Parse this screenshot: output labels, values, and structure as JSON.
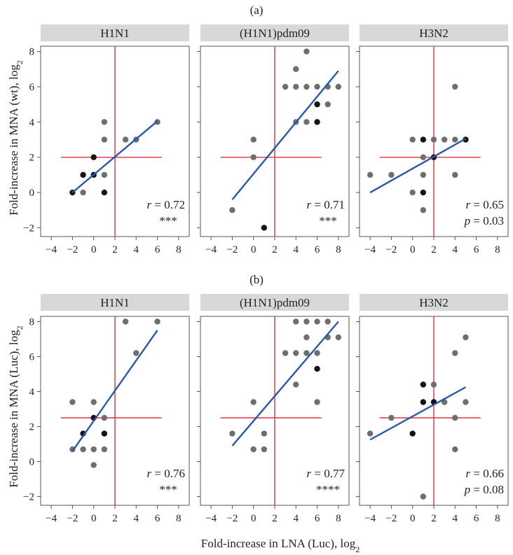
{
  "figure": {
    "panel_a_label": "(a)",
    "panel_b_label": "(b)",
    "ylabel_a": "Fold-increase in MNA (wt), log",
    "ylabel_b": "Fold-increase in MNA (Luc), log",
    "xlabel": "Fold-increase in LNA (Luc), log",
    "log_subscript": "2"
  },
  "chart_data": [
    {
      "type": "scatter",
      "row": "a",
      "title": "H1N1",
      "xlim": [
        -5,
        9
      ],
      "ylim": [
        -2.5,
        8.3
      ],
      "xticks": [
        "−4",
        "−2",
        "0",
        "2",
        "4",
        "6",
        "8"
      ],
      "yticks": [
        "−2",
        "0",
        "2",
        "4",
        "6",
        "8"
      ],
      "ref_x": 2,
      "ref_y": 2,
      "fit_x": [
        -2,
        6
      ],
      "fit_y": [
        0,
        4.05
      ],
      "r_label": "r",
      "r_value": " = 0.72",
      "sig": "***",
      "points": [
        {
          "x": -2,
          "y": 0,
          "dark": true
        },
        {
          "x": -1,
          "y": 1,
          "dark": true
        },
        {
          "x": -1,
          "y": 0,
          "dark": false
        },
        {
          "x": 0,
          "y": 2,
          "dark": true
        },
        {
          "x": 0,
          "y": 1,
          "dark": true
        },
        {
          "x": 1,
          "y": 4,
          "dark": false
        },
        {
          "x": 1,
          "y": 3,
          "dark": false
        },
        {
          "x": 1,
          "y": 1,
          "dark": false
        },
        {
          "x": 1,
          "y": 0,
          "dark": true
        },
        {
          "x": 3,
          "y": 3,
          "dark": false
        },
        {
          "x": 4,
          "y": 3,
          "dark": false
        },
        {
          "x": 6,
          "y": 4,
          "dark": false
        }
      ]
    },
    {
      "type": "scatter",
      "row": "a",
      "title": "(H1N1)pdm09",
      "xlim": [
        -5,
        9
      ],
      "ylim": [
        -2.5,
        8.3
      ],
      "xticks": [
        "−4",
        "−2",
        "0",
        "2",
        "4",
        "6",
        "8"
      ],
      "yticks": [
        "−2",
        "0",
        "2",
        "4",
        "6",
        "8"
      ],
      "ref_x": 2,
      "ref_y": 2,
      "fit_x": [
        -2,
        8
      ],
      "fit_y": [
        -0.4,
        6.9
      ],
      "r_label": "r",
      "r_value": " = 0.71",
      "sig": "***",
      "points": [
        {
          "x": -2,
          "y": -1,
          "dark": false
        },
        {
          "x": 0,
          "y": 3,
          "dark": false
        },
        {
          "x": 0,
          "y": 2,
          "dark": false
        },
        {
          "x": 1,
          "y": -2,
          "dark": true
        },
        {
          "x": 3,
          "y": 6,
          "dark": false
        },
        {
          "x": 4,
          "y": 7,
          "dark": false
        },
        {
          "x": 4,
          "y": 6,
          "dark": false
        },
        {
          "x": 4,
          "y": 4,
          "dark": false
        },
        {
          "x": 5,
          "y": 8,
          "dark": false
        },
        {
          "x": 5,
          "y": 6,
          "dark": false
        },
        {
          "x": 5,
          "y": 4,
          "dark": false
        },
        {
          "x": 6,
          "y": 6,
          "dark": false
        },
        {
          "x": 6,
          "y": 5,
          "dark": true
        },
        {
          "x": 6,
          "y": 4,
          "dark": true
        },
        {
          "x": 7,
          "y": 6,
          "dark": false
        },
        {
          "x": 7,
          "y": 5,
          "dark": false
        },
        {
          "x": 8,
          "y": 6,
          "dark": false
        }
      ]
    },
    {
      "type": "scatter",
      "row": "a",
      "title": "H3N2",
      "xlim": [
        -5,
        9
      ],
      "ylim": [
        -2.5,
        8.3
      ],
      "xticks": [
        "−4",
        "−2",
        "0",
        "2",
        "4",
        "6",
        "8"
      ],
      "yticks": [
        "−2",
        "0",
        "2",
        "4",
        "6",
        "8"
      ],
      "ref_x": 2,
      "ref_y": 2,
      "fit_x": [
        -4,
        5
      ],
      "fit_y": [
        0,
        3.05
      ],
      "r_label": "r",
      "r_value": " = 0.65",
      "p_label": "p",
      "p_value": " = 0.03",
      "points": [
        {
          "x": -4,
          "y": 1,
          "dark": false
        },
        {
          "x": -2,
          "y": 1,
          "dark": false
        },
        {
          "x": 0,
          "y": 3,
          "dark": false
        },
        {
          "x": 0,
          "y": 0,
          "dark": false
        },
        {
          "x": 1,
          "y": 3,
          "dark": true
        },
        {
          "x": 1,
          "y": 2,
          "dark": false
        },
        {
          "x": 1,
          "y": 1,
          "dark": false
        },
        {
          "x": 1,
          "y": 0,
          "dark": true
        },
        {
          "x": 1,
          "y": -1,
          "dark": false
        },
        {
          "x": 2,
          "y": 3,
          "dark": false
        },
        {
          "x": 2,
          "y": 2,
          "dark": true
        },
        {
          "x": 3,
          "y": 3,
          "dark": false
        },
        {
          "x": 4,
          "y": 6,
          "dark": false
        },
        {
          "x": 4,
          "y": 3,
          "dark": false
        },
        {
          "x": 4,
          "y": 1,
          "dark": false
        },
        {
          "x": 5,
          "y": 3,
          "dark": true
        }
      ]
    },
    {
      "type": "scatter",
      "row": "b",
      "title": "H1N1",
      "xlim": [
        -5,
        9
      ],
      "ylim": [
        -2.5,
        8.3
      ],
      "xticks": [
        "−4",
        "−2",
        "0",
        "2",
        "4",
        "6",
        "8"
      ],
      "yticks": [
        "−2",
        "0",
        "2",
        "4",
        "6",
        "8"
      ],
      "ref_x": 2,
      "ref_y": 2.5,
      "fit_x": [
        -2,
        6
      ],
      "fit_y": [
        0.6,
        7.5
      ],
      "r_label": "r",
      "r_value": " = 0.76",
      "sig": "***",
      "points": [
        {
          "x": -2,
          "y": 3.4,
          "dark": false
        },
        {
          "x": -2,
          "y": 0.7,
          "dark": false
        },
        {
          "x": -1,
          "y": 1.6,
          "dark": true
        },
        {
          "x": -1,
          "y": 0.7,
          "dark": false
        },
        {
          "x": 0,
          "y": 3.4,
          "dark": false
        },
        {
          "x": 0,
          "y": 2.5,
          "dark": true
        },
        {
          "x": 0,
          "y": 0.7,
          "dark": false
        },
        {
          "x": 0,
          "y": -0.2,
          "dark": false
        },
        {
          "x": 1,
          "y": 2.5,
          "dark": false
        },
        {
          "x": 1,
          "y": 1.6,
          "dark": true
        },
        {
          "x": 1,
          "y": 0.7,
          "dark": false
        },
        {
          "x": 3,
          "y": 8,
          "dark": false
        },
        {
          "x": 4,
          "y": 6.2,
          "dark": false
        },
        {
          "x": 6,
          "y": 8,
          "dark": false
        }
      ]
    },
    {
      "type": "scatter",
      "row": "b",
      "title": "(H1N1)pdm09",
      "xlim": [
        -5,
        9
      ],
      "ylim": [
        -2.5,
        8.3
      ],
      "xticks": [
        "−4",
        "−2",
        "0",
        "2",
        "4",
        "6",
        "8"
      ],
      "yticks": [
        "−2",
        "0",
        "2",
        "4",
        "6",
        "8"
      ],
      "ref_x": 2,
      "ref_y": 2.5,
      "fit_x": [
        -2,
        8
      ],
      "fit_y": [
        0.9,
        8.0
      ],
      "r_label": "r",
      "r_value": " = 0.77",
      "sig": "****",
      "points": [
        {
          "x": -2,
          "y": 1.6,
          "dark": false
        },
        {
          "x": 0,
          "y": 3.4,
          "dark": false
        },
        {
          "x": 0,
          "y": 0.7,
          "dark": false
        },
        {
          "x": 1,
          "y": 1.6,
          "dark": false
        },
        {
          "x": 1,
          "y": 0.7,
          "dark": false
        },
        {
          "x": 3,
          "y": 6.2,
          "dark": false
        },
        {
          "x": 4,
          "y": 8,
          "dark": false
        },
        {
          "x": 4,
          "y": 6.2,
          "dark": false
        },
        {
          "x": 4,
          "y": 4.4,
          "dark": false
        },
        {
          "x": 5,
          "y": 8,
          "dark": false
        },
        {
          "x": 5,
          "y": 7.1,
          "dark": false
        },
        {
          "x": 5,
          "y": 6.2,
          "dark": false
        },
        {
          "x": 6,
          "y": 8,
          "dark": false
        },
        {
          "x": 6,
          "y": 6.2,
          "dark": false
        },
        {
          "x": 6,
          "y": 5.3,
          "dark": true
        },
        {
          "x": 6,
          "y": 3.4,
          "dark": false
        },
        {
          "x": 7,
          "y": 8,
          "dark": false
        },
        {
          "x": 7,
          "y": 7.1,
          "dark": false
        },
        {
          "x": 8,
          "y": 7.1,
          "dark": false
        }
      ]
    },
    {
      "type": "scatter",
      "row": "b",
      "title": "H3N2",
      "xlim": [
        -5,
        9
      ],
      "ylim": [
        -2.5,
        8.3
      ],
      "xticks": [
        "−4",
        "−2",
        "0",
        "2",
        "4",
        "6",
        "8"
      ],
      "yticks": [
        "−2",
        "0",
        "2",
        "4",
        "6",
        "8"
      ],
      "ref_x": 2,
      "ref_y": 2.5,
      "fit_x": [
        -4,
        5
      ],
      "fit_y": [
        1.25,
        4.25
      ],
      "r_label": "r",
      "r_value": " = 0.66",
      "p_label": "p",
      "p_value": " = 0.08",
      "points": [
        {
          "x": -4,
          "y": 1.6,
          "dark": false
        },
        {
          "x": -2,
          "y": 2.5,
          "dark": false
        },
        {
          "x": 0,
          "y": 1.6,
          "dark": true
        },
        {
          "x": 1,
          "y": 4.4,
          "dark": true
        },
        {
          "x": 1,
          "y": 3.4,
          "dark": true
        },
        {
          "x": 1,
          "y": -2,
          "dark": false
        },
        {
          "x": 2,
          "y": 4.4,
          "dark": false
        },
        {
          "x": 2,
          "y": 3.4,
          "dark": true
        },
        {
          "x": 3,
          "y": 3.4,
          "dark": false
        },
        {
          "x": 4,
          "y": 6.2,
          "dark": false
        },
        {
          "x": 4,
          "y": 2.5,
          "dark": false
        },
        {
          "x": 4,
          "y": 0.7,
          "dark": false
        },
        {
          "x": 5,
          "y": 7.1,
          "dark": false
        },
        {
          "x": 5,
          "y": 3.4,
          "dark": false
        }
      ]
    }
  ]
}
